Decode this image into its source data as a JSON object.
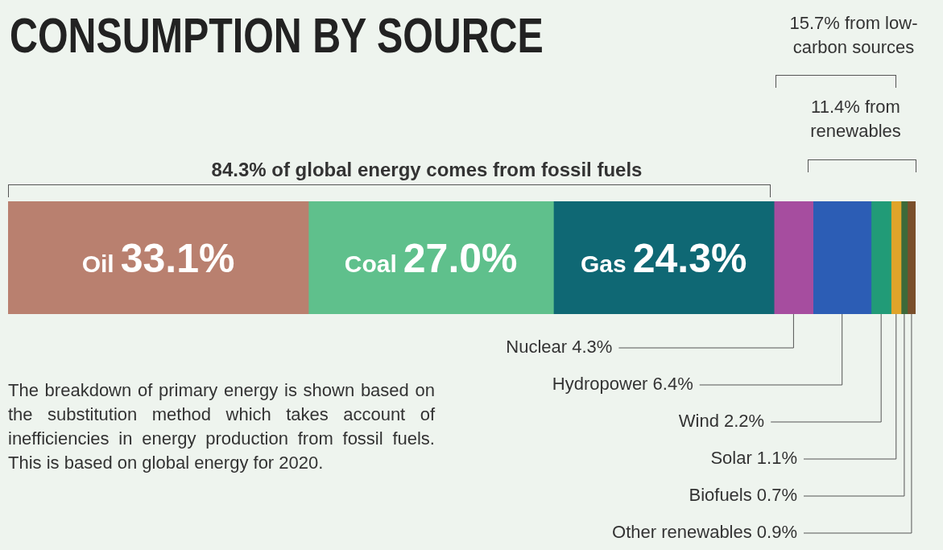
{
  "chart_data": {
    "type": "bar",
    "title": "CONSUMPTION BY SOURCE",
    "orientation": "horizontal",
    "stacked": true,
    "categories": [
      null
    ],
    "legend": false,
    "series": [
      {
        "name": "Oil",
        "color": "#b9806f",
        "values": [
          33.1
        ],
        "value_labels": [
          "33.1%"
        ]
      },
      {
        "name": "Coal",
        "color": "#5fc08c",
        "values": [
          27.0
        ],
        "value_labels": [
          "27.0%"
        ]
      },
      {
        "name": "Gas",
        "color": "#0f6874",
        "values": [
          24.3
        ],
        "value_labels": [
          "24.3%"
        ]
      },
      {
        "name": "Nuclear",
        "color": "#a64d9f",
        "values": [
          4.3
        ],
        "value_labels": [
          "4.3%"
        ]
      },
      {
        "name": "Hydropower",
        "color": "#2c5db5",
        "values": [
          6.4
        ],
        "value_labels": [
          "6.4%"
        ]
      },
      {
        "name": "Wind",
        "color": "#219b77",
        "values": [
          2.2
        ],
        "value_labels": [
          "2.2%"
        ]
      },
      {
        "name": "Solar",
        "color": "#e0a42a",
        "values": [
          1.1
        ],
        "value_labels": [
          "1.1%"
        ]
      },
      {
        "name": "Biofuels",
        "color": "#3d6a3a",
        "values": [
          0.7
        ],
        "value_labels": [
          "0.7%"
        ]
      },
      {
        "name": "Other renewables",
        "color": "#7a4f2b",
        "values": [
          0.9
        ],
        "value_labels": [
          "0.9%"
        ]
      }
    ],
    "annotations": [
      "84.3% of global energy comes from fossil fuels",
      "15.7% from low-carbon sources",
      "11.4% from renewables",
      "The breakdown of primary energy is shown based on the substitution method which takes account of inefficiencies in energy production from fossil fuels. This is based on global energy for 2020."
    ]
  }
}
